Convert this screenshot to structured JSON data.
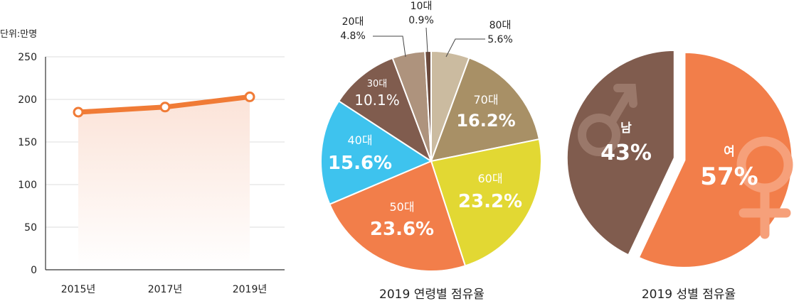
{
  "chart_data": [
    {
      "type": "line",
      "unit_label": "단위:만명",
      "x": [
        "2015년",
        "2017년",
        "2019년"
      ],
      "values": [
        185,
        191,
        203
      ],
      "ylim": [
        0,
        250
      ],
      "yticks": [
        0,
        50,
        100,
        150,
        200,
        250
      ],
      "grid": true,
      "colors": {
        "line": "#f07b36",
        "fill_top": "#fbe3d8",
        "grid": "#dddddd",
        "axis": "#333333"
      }
    },
    {
      "type": "pie",
      "title": "2019 연령별 점유율",
      "slices": [
        {
          "label": "80대",
          "value": 5.6,
          "display": "5.6%",
          "color": "#cbbba0"
        },
        {
          "label": "70대",
          "value": 16.2,
          "display": "16.2%",
          "color": "#a89066"
        },
        {
          "label": "60대",
          "value": 23.2,
          "display": "23.2%",
          "color": "#e2d833"
        },
        {
          "label": "50대",
          "value": 23.6,
          "display": "23.6%",
          "color": "#f27e4a"
        },
        {
          "label": "40대",
          "value": 15.6,
          "display": "15.6%",
          "color": "#3ec3ee"
        },
        {
          "label": "30대",
          "value": 10.1,
          "display": "10.1%",
          "color": "#805c4e"
        },
        {
          "label": "20대",
          "value": 4.8,
          "display": "4.8%",
          "color": "#ae937d"
        },
        {
          "label": "10대",
          "value": 0.9,
          "display": "0.9%",
          "color": "#6b4a3d"
        }
      ]
    },
    {
      "type": "pie",
      "title": "2019 성별 점유율",
      "slices": [
        {
          "label": "여",
          "value": 57,
          "display": "57%",
          "color": "#f27e4a",
          "icon": "female-symbol-icon"
        },
        {
          "label": "남",
          "value": 43,
          "display": "43%",
          "color": "#805c4e",
          "icon": "male-symbol-icon"
        }
      ]
    }
  ]
}
